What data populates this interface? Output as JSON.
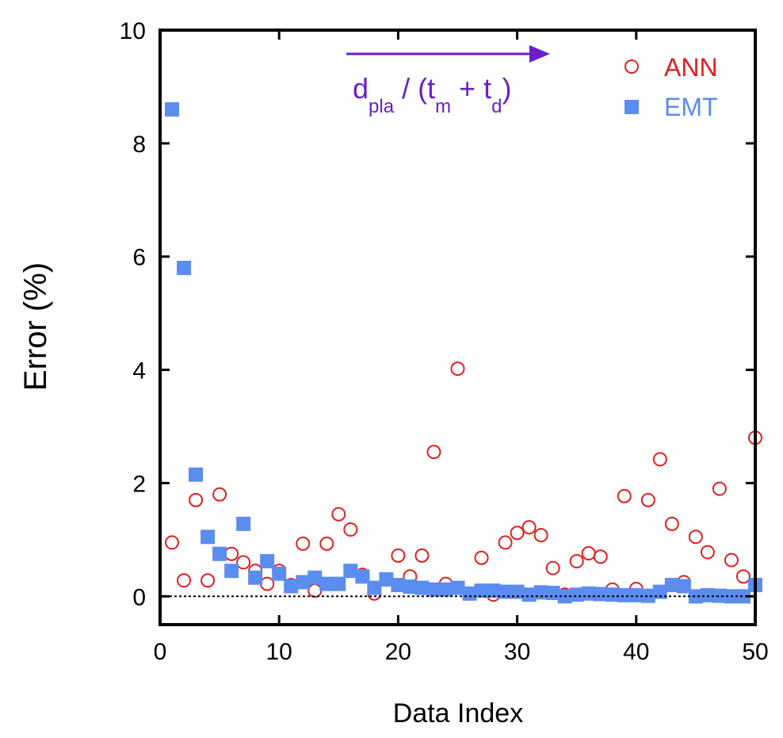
{
  "chart_data": {
    "type": "scatter",
    "title": "",
    "xlabel": "Data Index",
    "ylabel": "Error (%)",
    "xlim": [
      0,
      50
    ],
    "ylim": [
      -0.5,
      10
    ],
    "xticks": [
      "0",
      "10",
      "20",
      "30",
      "40",
      "50"
    ],
    "yticks": [
      "0",
      "2",
      "4",
      "6",
      "8",
      "10"
    ],
    "grid": false,
    "legend_position": "top-right",
    "zero_line": "dotted",
    "annotation": {
      "main": "d",
      "sub1": "pla",
      "mid": " / (t",
      "sub2": "m",
      "mid2": " + t",
      "sub3": "d",
      "end": ")",
      "arrow": "right",
      "color": "#6a1fc8"
    },
    "series": [
      {
        "name": "ANN",
        "marker": "open-circle",
        "color": "#e01f1f",
        "x": [
          1,
          2,
          3,
          4,
          5,
          6,
          7,
          8,
          9,
          10,
          11,
          12,
          13,
          14,
          15,
          16,
          17,
          18,
          19,
          20,
          21,
          22,
          23,
          24,
          25,
          26,
          27,
          28,
          29,
          30,
          31,
          32,
          33,
          34,
          35,
          36,
          37,
          38,
          39,
          40,
          41,
          42,
          43,
          44,
          45,
          46,
          47,
          48,
          49,
          50
        ],
        "y": [
          0.95,
          0.28,
          1.7,
          0.28,
          1.8,
          0.75,
          0.6,
          0.45,
          0.22,
          0.45,
          0.2,
          0.93,
          0.1,
          0.93,
          1.45,
          1.18,
          0.38,
          0.05,
          0.3,
          0.72,
          0.35,
          0.72,
          2.55,
          0.22,
          4.02,
          0.05,
          0.68,
          0.03,
          0.95,
          1.12,
          1.22,
          1.08,
          0.5,
          0.03,
          0.62,
          0.76,
          0.7,
          0.12,
          1.77,
          0.13,
          1.7,
          2.42,
          1.28,
          0.25,
          1.05,
          0.78,
          1.9,
          0.64,
          0.35,
          2.8
        ]
      },
      {
        "name": "EMT",
        "marker": "filled-square",
        "color": "#5b8cf0",
        "x": [
          1,
          2,
          3,
          4,
          5,
          6,
          7,
          8,
          9,
          10,
          11,
          12,
          13,
          14,
          15,
          16,
          17,
          18,
          19,
          20,
          21,
          22,
          23,
          24,
          25,
          26,
          27,
          28,
          29,
          30,
          31,
          32,
          33,
          34,
          35,
          36,
          37,
          38,
          39,
          40,
          41,
          42,
          43,
          44,
          45,
          46,
          47,
          48,
          49,
          50
        ],
        "y": [
          8.6,
          5.8,
          2.15,
          1.05,
          0.75,
          0.45,
          1.28,
          0.33,
          0.62,
          0.4,
          0.18,
          0.25,
          0.33,
          0.22,
          0.22,
          0.45,
          0.35,
          0.15,
          0.3,
          0.2,
          0.17,
          0.15,
          0.12,
          0.12,
          0.15,
          0.05,
          0.1,
          0.1,
          0.08,
          0.08,
          0.03,
          0.07,
          0.06,
          0.0,
          0.03,
          0.05,
          0.04,
          0.03,
          0.02,
          0.02,
          0.01,
          0.08,
          0.2,
          0.18,
          0.0,
          0.02,
          0.01,
          0.0,
          0.0,
          0.2
        ]
      }
    ]
  }
}
